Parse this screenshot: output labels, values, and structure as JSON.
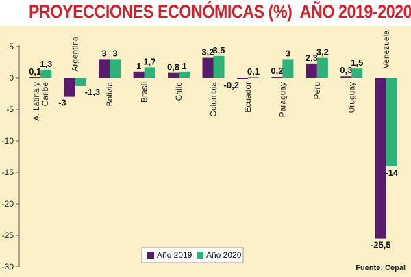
{
  "title": "PROYECCIONES ECONÓMICAS (%)  AÑO 2019-2020",
  "source": "Fuente: Cepal",
  "colors": {
    "title": "#d0202a",
    "background": "#fbf0c8",
    "series2019": "#5a1a6e",
    "series2020": "#2fb27a"
  },
  "chart_data": {
    "type": "bar",
    "title": "PROYECCIONES ECONÓMICAS (%)  AÑO 2019-2020",
    "xlabel": "",
    "ylabel": "",
    "ylim": [
      -30,
      5
    ],
    "yticks": [
      5,
      0,
      -5,
      -10,
      -15,
      -20,
      -25,
      -30
    ],
    "categories": [
      [
        "A. Latina y",
        "Caribe"
      ],
      [
        "Argentina"
      ],
      [
        "Bolivia"
      ],
      [
        "Brasil"
      ],
      [
        "Chile"
      ],
      [
        "Colombia"
      ],
      [
        "Ecuador"
      ],
      [
        "Paraguay"
      ],
      [
        "Peru"
      ],
      [
        "Uruguay"
      ],
      [
        "Venezuela"
      ]
    ],
    "series": [
      {
        "name": "Año 2019",
        "values": [
          0.1,
          -3,
          3,
          1,
          0.8,
          3.2,
          -0.2,
          0.2,
          2.3,
          0.3,
          -25.5
        ],
        "labels": [
          "0,1",
          "-3",
          "3",
          "1",
          "0,8",
          "3,2",
          "-0,2",
          "0,2",
          "2,3",
          "0,3",
          "-25,5"
        ]
      },
      {
        "name": "Año 2020",
        "values": [
          1.3,
          -1.3,
          3,
          1.7,
          1,
          3.5,
          0.1,
          3,
          3.2,
          1.5,
          -14
        ],
        "labels": [
          "1,3",
          "-1,3",
          "3",
          "1,7",
          "1",
          "3,5",
          "0,1",
          "3",
          "3,2",
          "1,5",
          "-14"
        ]
      }
    ],
    "legend_position": "bottom-right"
  }
}
